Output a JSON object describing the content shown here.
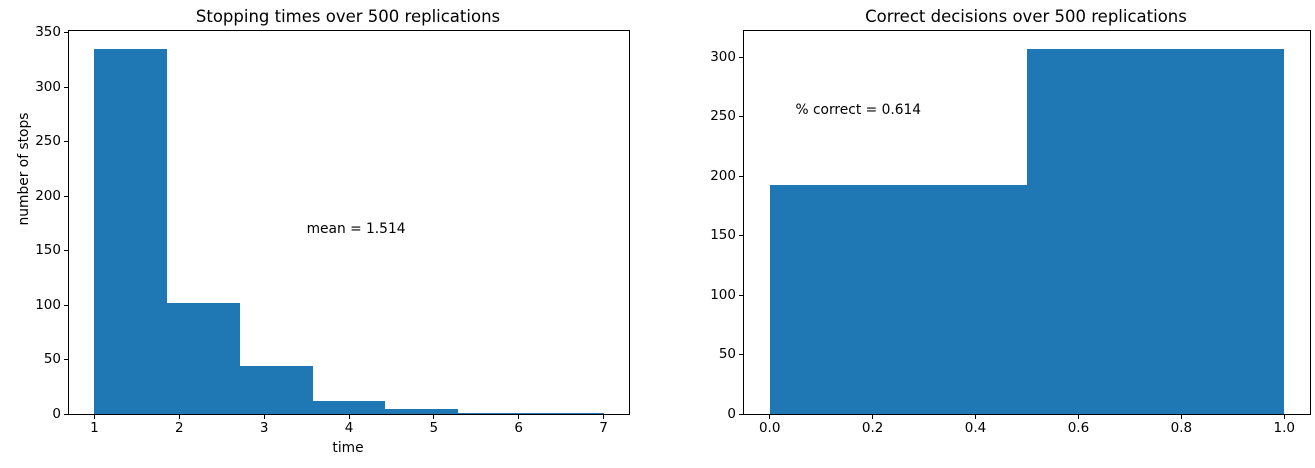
{
  "figure": {
    "background_color": "#ffffff",
    "bar_color": "#1f77b4",
    "spine_color": "#000000",
    "text_color": "#000000"
  },
  "chart_data": [
    {
      "type": "bar",
      "subtype": "histogram",
      "title": "Stopping times over 500 replications",
      "xlabel": "time",
      "ylabel": "number of stops",
      "bin_edges": [
        1.0,
        1.8571,
        2.7143,
        3.5714,
        4.4286,
        5.2857,
        6.1429,
        7.0
      ],
      "counts": [
        335,
        102,
        44,
        12,
        5,
        1,
        1
      ],
      "total_replications_shown": 500,
      "xlim": [
        0.7,
        7.3
      ],
      "ylim": [
        0,
        351.75
      ],
      "xticks": [
        1,
        2,
        3,
        4,
        5,
        6,
        7
      ],
      "xtick_labels": [
        "1",
        "2",
        "3",
        "4",
        "5",
        "6",
        "7"
      ],
      "yticks": [
        0,
        50,
        100,
        150,
        200,
        250,
        300,
        350
      ],
      "ytick_labels": [
        "0",
        "50",
        "100",
        "150",
        "200",
        "250",
        "300",
        "350"
      ],
      "grid": false,
      "legend": null,
      "annotation": {
        "text": "mean = 1.514",
        "x": 3.5,
        "y": 170
      }
    },
    {
      "type": "bar",
      "subtype": "histogram",
      "title": "Correct decisions over 500 replications",
      "xlabel": "",
      "ylabel": "",
      "bin_edges": [
        0.0,
        0.5,
        1.0
      ],
      "counts": [
        193,
        307
      ],
      "total_replications_shown": 500,
      "xlim": [
        -0.05,
        1.05
      ],
      "ylim": [
        0,
        322.35
      ],
      "xticks": [
        0.0,
        0.2,
        0.4,
        0.6,
        0.8,
        1.0
      ],
      "xtick_labels": [
        "0.0",
        "0.2",
        "0.4",
        "0.6",
        "0.8",
        "1.0"
      ],
      "yticks": [
        0,
        50,
        100,
        150,
        200,
        250,
        300
      ],
      "ytick_labels": [
        "0",
        "50",
        "100",
        "150",
        "200",
        "250",
        "300"
      ],
      "grid": false,
      "legend": null,
      "annotation": {
        "text": "% correct = 0.614",
        "x": 0.05,
        "y": 256
      }
    }
  ]
}
